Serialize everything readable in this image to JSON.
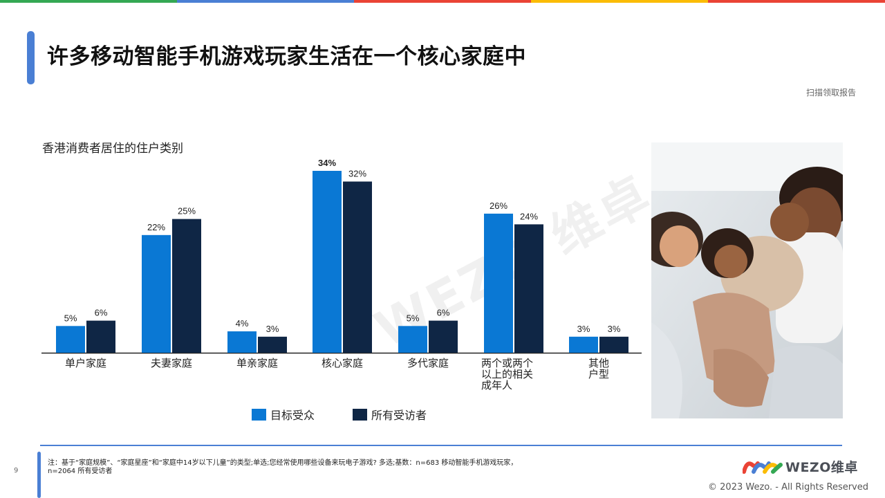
{
  "header": {
    "stripe_colors": [
      "#34a853",
      "#4a7fd4",
      "#ea4335",
      "#fbbc05",
      "#ea4335"
    ],
    "title": "许多移动智能手机游戏玩家生活在一个核心家庭中",
    "scan_link": "扫描领取报告"
  },
  "watermark": "WEZO 维卓",
  "chart_data": {
    "type": "bar",
    "title": "香港消费者居住的住户类别",
    "categories": [
      "单户家庭",
      "夫妻家庭",
      "单亲家庭",
      "核心家庭",
      "多代家庭",
      "两个或两个\n以上的相关\n成年人",
      "其他\n户型"
    ],
    "series": [
      {
        "name": "目标受众",
        "color": "#0a78d4",
        "values": [
          5,
          22,
          4,
          34,
          5,
          26,
          3
        ],
        "labels": [
          "5%",
          "22%",
          "4%",
          "34%",
          "5%",
          "26%",
          "3%"
        ]
      },
      {
        "name": "所有受访者",
        "color": "#0f2645",
        "values": [
          6,
          25,
          3,
          32,
          6,
          24,
          3
        ],
        "labels": [
          "6%",
          "25%",
          "3%",
          "32%",
          "6%",
          "24%",
          "3%"
        ]
      }
    ],
    "ylim": [
      0,
      34
    ],
    "grid": false,
    "legend_position": "bottom"
  },
  "footer": {
    "page_number": "9",
    "note": "注：基于“家庭规模”、“家庭星座”和“家庭中14岁以下儿童”的类型;单选;您经常使用哪些设备来玩电子游戏? 多选;基数：n=683 移动智能手机游戏玩家，n=2064 所有受访者",
    "logo_text": "WEZO维卓",
    "copyright": "© 2023 Wezo. - All Rights Reserved"
  }
}
